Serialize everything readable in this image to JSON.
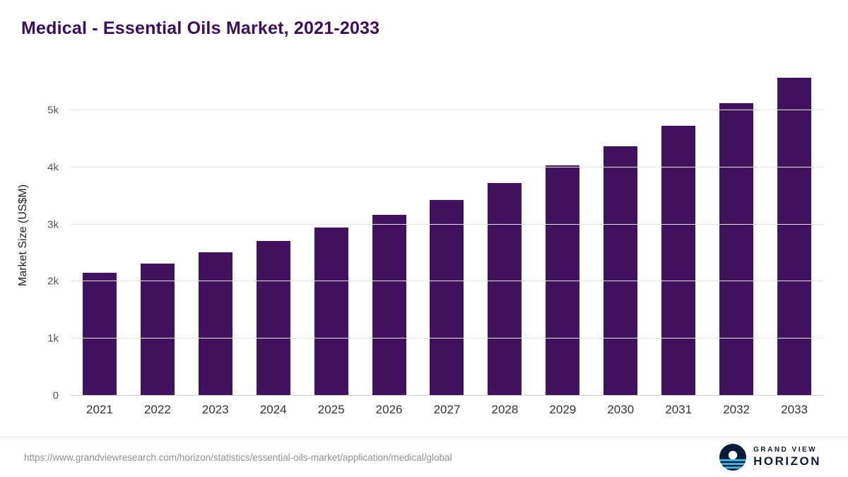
{
  "header": {
    "title": "Medical - Essential Oils Market, 2021-2033"
  },
  "chart_data": {
    "type": "bar",
    "title": "Medical - Essential Oils Market, 2021-2033",
    "categories": [
      "2021",
      "2022",
      "2023",
      "2024",
      "2025",
      "2026",
      "2027",
      "2028",
      "2029",
      "2030",
      "2031",
      "2032",
      "2033"
    ],
    "values": [
      2150,
      2310,
      2510,
      2710,
      2940,
      3170,
      3430,
      3720,
      4030,
      4370,
      4730,
      5120,
      5570
    ],
    "xlabel": "",
    "ylabel": "Market Size (US$M)",
    "ylim": [
      0,
      5630
    ],
    "ytick_values": [
      0,
      1000,
      2000,
      3000,
      4000,
      5000
    ],
    "ytick_labels": [
      "0",
      "1k",
      "2k",
      "3k",
      "4k",
      "5k"
    ],
    "grid": "horizontal",
    "legend": "none",
    "bar_color": "#41135f"
  },
  "footer": {
    "source_url": "https://www.grandviewresearch.com/horizon/statistics/essential-oils-market/application/medical/global",
    "logo": {
      "line1": "GRAND VIEW",
      "line2": "HORIZON",
      "icon": "horizon-sun-icon",
      "icon_bg": "#0d1b3a",
      "icon_accent": "#3fb9e6"
    }
  },
  "colors": {
    "title": "#3c0d5c",
    "axis_text": "#555555",
    "grid": "#e4e4e4"
  }
}
